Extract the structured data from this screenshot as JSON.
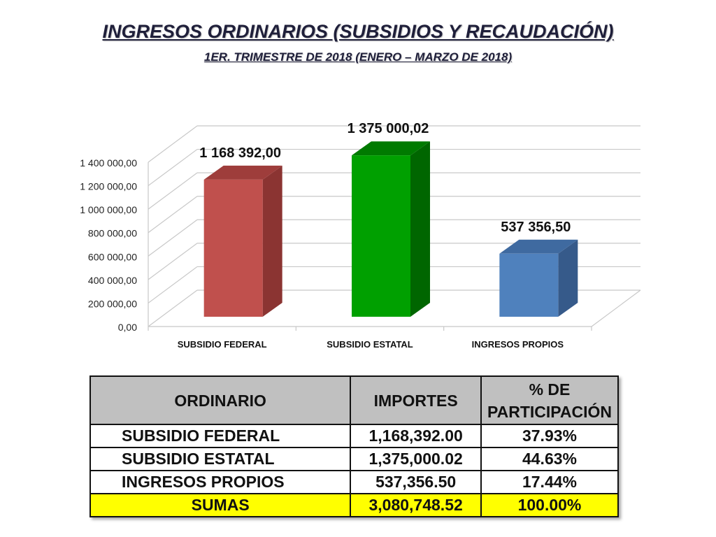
{
  "title": "INGRESOS ORDINARIOS (SUBSIDIOS Y RECAUDACIÓN)",
  "subtitle": "1ER. TRIMESTRE DE 2018 (ENERO – MARZO DE 2018)",
  "chart_data": {
    "type": "bar",
    "title": "INGRESOS ORDINARIOS (SUBSIDIOS Y RECAUDACIÓN)",
    "subtitle": "1ER. TRIMESTRE DE 2018 (ENERO – MARZO DE 2018)",
    "categories": [
      "SUBSIDIO FEDERAL",
      "SUBSIDIO ESTATAL",
      "INGRESOS PROPIOS"
    ],
    "values": [
      1168392.0,
      1375000.02,
      537356.5
    ],
    "data_labels": [
      "1 168 392,00",
      "1 375 000,02",
      "537 356,50"
    ],
    "colors": [
      "#c0504d",
      "#00a000",
      "#4f81bd"
    ],
    "side_colors": [
      "#8b3432",
      "#006600",
      "#365a8a"
    ],
    "top_colors": [
      "#9e3d3b",
      "#007a00",
      "#3f6aa0"
    ],
    "ylim": [
      0,
      1400000
    ],
    "yticks": [
      "0,00",
      "200 000,00",
      "400 000,00",
      "600 000,00",
      "800 000,00",
      "1 000 000,00",
      "1 200 000,00",
      "1 400 000,00"
    ],
    "grid": true,
    "style": "3d-column"
  },
  "table": {
    "headers": [
      "ORDINARIO",
      "IMPORTES",
      "% DE PARTICIPACIÓN"
    ],
    "rows": [
      [
        "SUBSIDIO FEDERAL",
        "1,168,392.00",
        "37.93%"
      ],
      [
        "SUBSIDIO ESTATAL",
        "1,375,000.02",
        "44.63%"
      ],
      [
        "INGRESOS  PROPIOS",
        "537,356.50",
        "17.44%"
      ]
    ],
    "total": [
      "SUMAS",
      "3,080,748.52",
      "100.00%"
    ],
    "header_bg": "#c0c0c0",
    "total_bg": "#ffff00"
  }
}
